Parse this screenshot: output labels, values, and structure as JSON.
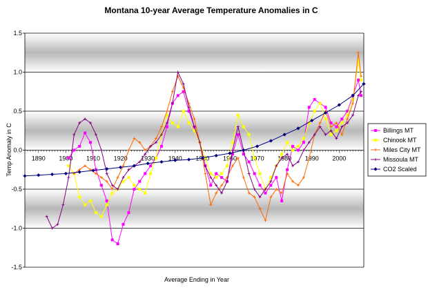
{
  "chart_data": {
    "type": "line",
    "title": "Montana 10-year Average Temperature Anomalies in C",
    "xlabel": "Average Ending in Year",
    "ylabel": "Temp Anomaly in C",
    "xlim": [
      1885,
      2009
    ],
    "ylim": [
      -1.5,
      1.5
    ],
    "x_ticks": [
      1890,
      1900,
      1910,
      1920,
      1930,
      1940,
      1950,
      1960,
      1970,
      1980,
      1990,
      2000
    ],
    "x_tick_labels": [
      "1890",
      "1900",
      "1910",
      "1920",
      "1930",
      "1940",
      "1950",
      "1960",
      "1970",
      "1980",
      "1990",
      "2000"
    ],
    "y_ticks": [
      -1.5,
      -1.0,
      -0.5,
      0.0,
      0.5,
      1.0,
      1.5
    ],
    "y_tick_labels": [
      "-1.5",
      "-1.0",
      "-0.5",
      "0.0",
      "0.5",
      "1.0",
      "1.5"
    ],
    "grid": true,
    "legend_position": "right",
    "series": [
      {
        "name": "Billings MT",
        "color": "#ff00ff",
        "marker": "square",
        "x": [
          1901,
          1903,
          1905,
          1907,
          1909,
          1911,
          1913,
          1915,
          1917,
          1919,
          1921,
          1923,
          1925,
          1927,
          1929,
          1931,
          1933,
          1935,
          1937,
          1939,
          1941,
          1943,
          1945,
          1947,
          1949,
          1951,
          1953,
          1955,
          1957,
          1959,
          1961,
          1963,
          1965,
          1967,
          1969,
          1971,
          1973,
          1975,
          1977,
          1979,
          1981,
          1983,
          1985,
          1987,
          1989,
          1991,
          1993,
          1995,
          1997,
          1999,
          2001,
          2003,
          2005,
          2007,
          2008
        ],
        "y": [
          -0.1,
          0.0,
          0.05,
          0.22,
          0.1,
          -0.25,
          -0.45,
          -0.65,
          -1.15,
          -1.2,
          -0.95,
          -0.8,
          -0.5,
          -0.4,
          -0.3,
          -0.2,
          -0.1,
          0.05,
          0.3,
          0.6,
          0.7,
          0.75,
          0.5,
          0.3,
          0.1,
          -0.2,
          -0.45,
          -0.3,
          -0.35,
          -0.4,
          -0.05,
          0.2,
          -0.05,
          -0.15,
          -0.3,
          -0.45,
          -0.55,
          -0.45,
          -0.35,
          -0.65,
          -0.25,
          0.05,
          0.0,
          0.1,
          0.55,
          0.65,
          0.6,
          0.55,
          0.35,
          0.3,
          0.4,
          0.5,
          0.7,
          0.9,
          0.7
        ]
      },
      {
        "name": "Chinook MT",
        "color": "#ffff00",
        "marker": "square",
        "x": [
          1901,
          1903,
          1905,
          1907,
          1909,
          1911,
          1913,
          1915,
          1917,
          1919,
          1921,
          1923,
          1925,
          1927,
          1929,
          1931,
          1933,
          1935,
          1937,
          1939,
          1941,
          1943,
          1945,
          1947,
          1949,
          1951,
          1953,
          1955,
          1957,
          1959,
          1961,
          1963,
          1965,
          1967,
          1969,
          1971,
          1973,
          1975,
          1977,
          1979,
          1981,
          1983,
          1985,
          1987,
          1989,
          1991,
          1993,
          1995,
          1997,
          1999,
          2001,
          2003,
          2005,
          2007,
          2008
        ],
        "y": [
          -0.2,
          -0.3,
          -0.6,
          -0.7,
          -0.65,
          -0.8,
          -0.85,
          -0.7,
          -0.55,
          -0.5,
          -0.4,
          -0.35,
          -0.45,
          -0.5,
          -0.55,
          -0.3,
          -0.1,
          0.2,
          0.45,
          0.35,
          0.3,
          0.5,
          0.35,
          0.25,
          0.1,
          -0.1,
          -0.3,
          -0.35,
          -0.3,
          -0.2,
          0.1,
          0.45,
          0.3,
          0.2,
          -0.1,
          -0.3,
          -0.5,
          -0.35,
          -0.2,
          -0.05,
          0.1,
          0.0,
          0.05,
          0.15,
          0.35,
          0.5,
          0.6,
          0.4,
          0.2,
          0.25,
          0.35,
          0.45,
          0.65,
          1.15,
          0.9
        ]
      },
      {
        "name": "Miles City MT",
        "color": "#ff6600",
        "marker": "plus",
        "x": [
          1903,
          1905,
          1907,
          1909,
          1911,
          1913,
          1915,
          1917,
          1919,
          1921,
          1923,
          1925,
          1927,
          1929,
          1931,
          1933,
          1935,
          1937,
          1939,
          1941,
          1943,
          1945,
          1947,
          1949,
          1951,
          1953,
          1955,
          1957,
          1959,
          1961,
          1963,
          1965,
          1967,
          1969,
          1971,
          1973,
          1975,
          1977,
          1979,
          1981,
          1983,
          1985,
          1987,
          1989,
          1991,
          1993,
          1995,
          1997,
          1999,
          2001,
          2003,
          2005,
          2007,
          2008
        ],
        "y": [
          -0.3,
          -0.25,
          -0.2,
          -0.25,
          -0.3,
          -0.35,
          -0.4,
          -0.5,
          -0.35,
          -0.2,
          0.0,
          0.15,
          0.1,
          0.0,
          0.05,
          0.15,
          0.3,
          0.5,
          0.75,
          0.95,
          0.8,
          0.6,
          0.4,
          0.1,
          -0.3,
          -0.7,
          -0.55,
          -0.45,
          -0.35,
          -0.2,
          -0.1,
          -0.35,
          -0.55,
          -0.6,
          -0.75,
          -0.9,
          -0.6,
          -0.5,
          -0.55,
          -0.3,
          -0.4,
          -0.45,
          -0.35,
          -0.1,
          0.2,
          0.35,
          0.5,
          0.3,
          0.35,
          0.2,
          0.4,
          0.6,
          1.25,
          0.95
        ]
      },
      {
        "name": "Missoula MT",
        "color": "#800080",
        "marker": "plus",
        "x": [
          1893,
          1895,
          1897,
          1899,
          1901,
          1903,
          1905,
          1907,
          1909,
          1911,
          1913,
          1915,
          1917,
          1919,
          1921,
          1923,
          1925,
          1927,
          1929,
          1931,
          1933,
          1935,
          1937,
          1939,
          1941,
          1943,
          1945,
          1947,
          1949,
          1951,
          1953,
          1955,
          1957,
          1959,
          1961,
          1963,
          1965,
          1967,
          1969,
          1971,
          1973,
          1975,
          1977,
          1979,
          1981,
          1983,
          1985,
          1987,
          1989,
          1991,
          1993,
          1995,
          1997,
          1999,
          2001,
          2003,
          2005,
          2007,
          2008
        ],
        "y": [
          -0.85,
          -1.0,
          -0.95,
          -0.7,
          -0.35,
          0.2,
          0.35,
          0.4,
          0.35,
          0.2,
          0.0,
          -0.3,
          -0.45,
          -0.5,
          -0.35,
          -0.25,
          -0.2,
          -0.15,
          -0.05,
          0.05,
          0.1,
          0.2,
          0.35,
          0.6,
          1.0,
          0.85,
          0.55,
          0.3,
          0.1,
          -0.2,
          -0.35,
          -0.45,
          -0.55,
          -0.4,
          0.0,
          0.3,
          0.0,
          -0.3,
          -0.5,
          -0.6,
          -0.5,
          -0.4,
          -0.2,
          -0.1,
          -0.05,
          -0.2,
          -0.15,
          0.0,
          0.1,
          0.2,
          0.3,
          0.2,
          0.25,
          0.15,
          0.3,
          0.35,
          0.45,
          0.7,
          0.75
        ]
      },
      {
        "name": "CO2 Scaled",
        "color": "#000080",
        "marker": "diamond",
        "x": [
          1885,
          1890,
          1895,
          1900,
          1905,
          1910,
          1915,
          1920,
          1925,
          1930,
          1935,
          1940,
          1945,
          1950,
          1955,
          1960,
          1965,
          1970,
          1975,
          1980,
          1985,
          1990,
          1995,
          2000,
          2005,
          2009
        ],
        "y": [
          -0.33,
          -0.32,
          -0.31,
          -0.3,
          -0.28,
          -0.26,
          -0.24,
          -0.22,
          -0.2,
          -0.17,
          -0.15,
          -0.13,
          -0.12,
          -0.1,
          -0.07,
          -0.04,
          0.0,
          0.05,
          0.12,
          0.2,
          0.28,
          0.38,
          0.48,
          0.58,
          0.7,
          0.85
        ]
      }
    ]
  }
}
